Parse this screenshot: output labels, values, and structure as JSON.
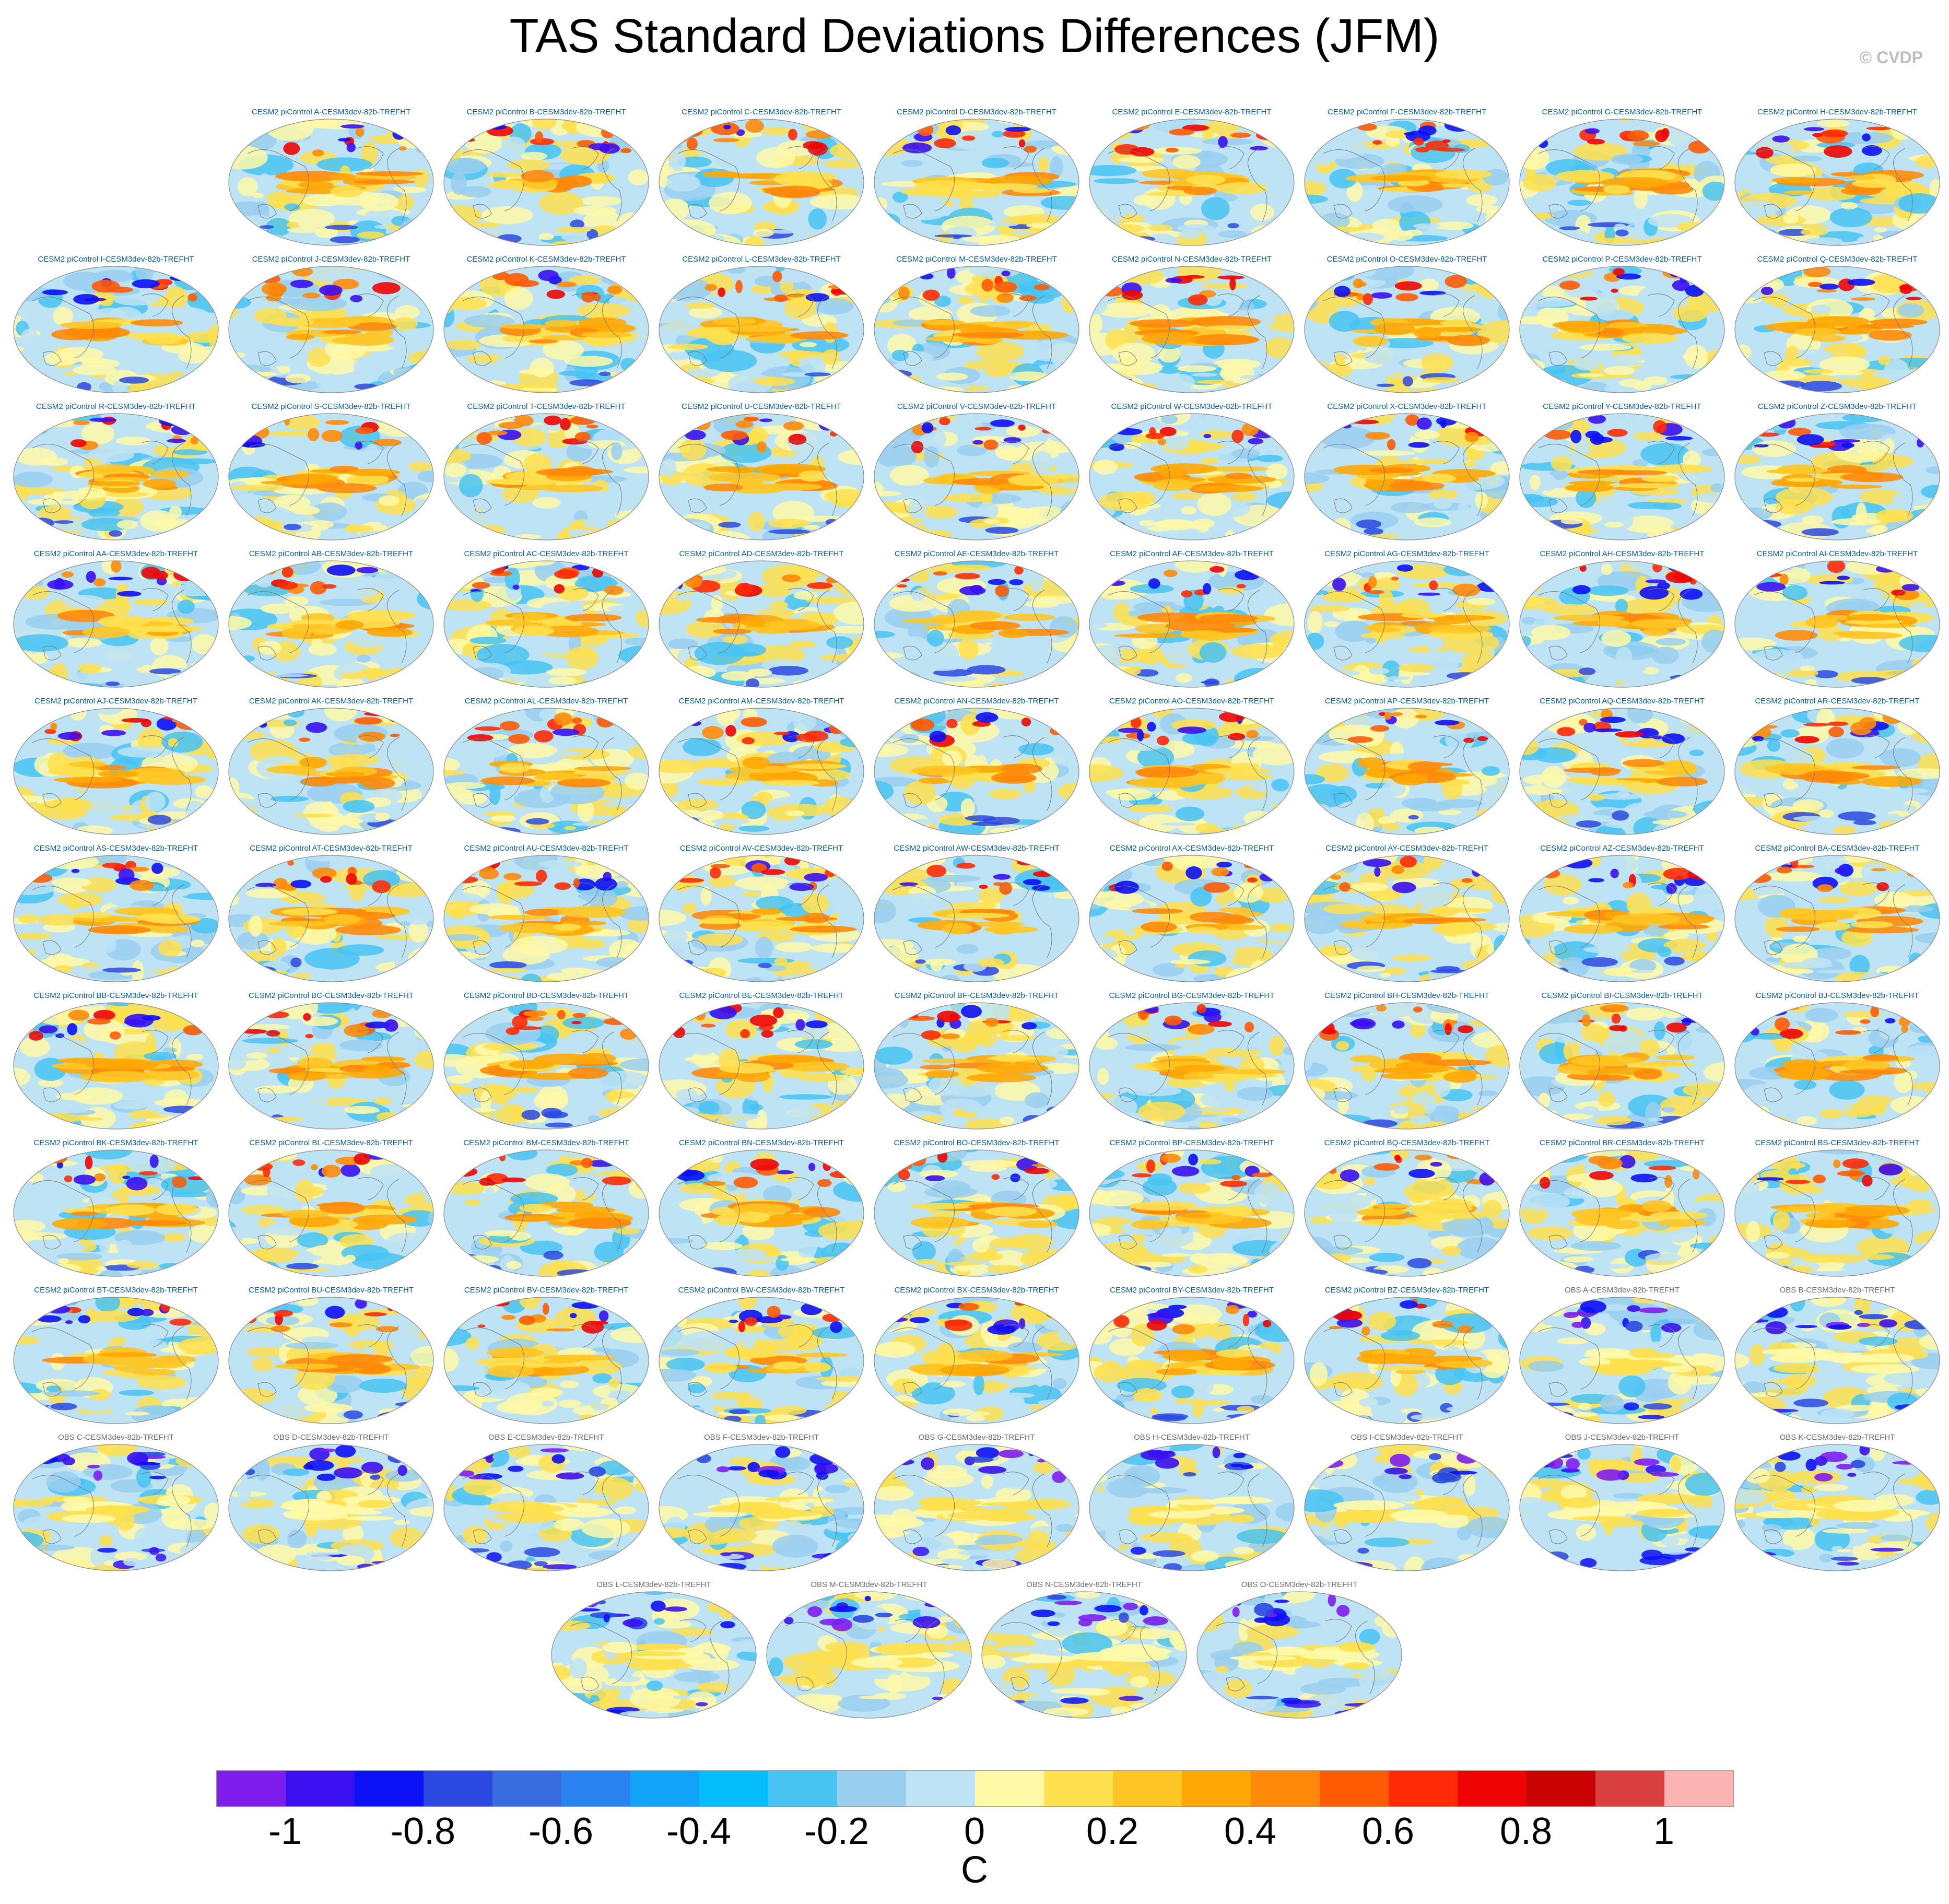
{
  "title": "TAS Standard Deviations Differences (JFM)",
  "copyright": "© CVDP",
  "panels": [
    "CESM2 piControl A-CESM3dev-82b-TREFHT",
    "CESM2 piControl B-CESM3dev-82b-TREFHT",
    "CESM2 piControl C-CESM3dev-82b-TREFHT",
    "CESM2 piControl D-CESM3dev-82b-TREFHT",
    "CESM2 piControl E-CESM3dev-82b-TREFHT",
    "CESM2 piControl F-CESM3dev-82b-TREFHT",
    "CESM2 piControl G-CESM3dev-82b-TREFHT",
    "CESM2 piControl H-CESM3dev-82b-TREFHT",
    "CESM2 piControl I-CESM3dev-82b-TREFHT",
    "CESM2 piControl J-CESM3dev-82b-TREFHT",
    "CESM2 piControl K-CESM3dev-82b-TREFHT",
    "CESM2 piControl L-CESM3dev-82b-TREFHT",
    "CESM2 piControl M-CESM3dev-82b-TREFHT",
    "CESM2 piControl N-CESM3dev-82b-TREFHT",
    "CESM2 piControl O-CESM3dev-82b-TREFHT",
    "CESM2 piControl P-CESM3dev-82b-TREFHT",
    "CESM2 piControl Q-CESM3dev-82b-TREFHT",
    "CESM2 piControl R-CESM3dev-82b-TREFHT",
    "CESM2 piControl S-CESM3dev-82b-TREFHT",
    "CESM2 piControl T-CESM3dev-82b-TREFHT",
    "CESM2 piControl U-CESM3dev-82b-TREFHT",
    "CESM2 piControl V-CESM3dev-82b-TREFHT",
    "CESM2 piControl W-CESM3dev-82b-TREFHT",
    "CESM2 piControl X-CESM3dev-82b-TREFHT",
    "CESM2 piControl Y-CESM3dev-82b-TREFHT",
    "CESM2 piControl Z-CESM3dev-82b-TREFHT",
    "CESM2 piControl AA-CESM3dev-82b-TREFHT",
    "CESM2 piControl AB-CESM3dev-82b-TREFHT",
    "CESM2 piControl AC-CESM3dev-82b-TREFHT",
    "CESM2 piControl AD-CESM3dev-82b-TREFHT",
    "CESM2 piControl AE-CESM3dev-82b-TREFHT",
    "CESM2 piControl AF-CESM3dev-82b-TREFHT",
    "CESM2 piControl AG-CESM3dev-82b-TREFHT",
    "CESM2 piControl AH-CESM3dev-82b-TREFHT",
    "CESM2 piControl AI-CESM3dev-82b-TREFHT",
    "CESM2 piControl AJ-CESM3dev-82b-TREFHT",
    "CESM2 piControl AK-CESM3dev-82b-TREFHT",
    "CESM2 piControl AL-CESM3dev-82b-TREFHT",
    "CESM2 piControl AM-CESM3dev-82b-TREFHT",
    "CESM2 piControl AN-CESM3dev-82b-TREFHT",
    "CESM2 piControl AO-CESM3dev-82b-TREFHT",
    "CESM2 piControl AP-CESM3dev-82b-TREFHT",
    "CESM2 piControl AQ-CESM3dev-82b-TREFHT",
    "CESM2 piControl AR-CESM3dev-82b-TREFHT",
    "CESM2 piControl AS-CESM3dev-82b-TREFHT",
    "CESM2 piControl AT-CESM3dev-82b-TREFHT",
    "CESM2 piControl AU-CESM3dev-82b-TREFHT",
    "CESM2 piControl AV-CESM3dev-82b-TREFHT",
    "CESM2 piControl AW-CESM3dev-82b-TREFHT",
    "CESM2 piControl AX-CESM3dev-82b-TREFHT",
    "CESM2 piControl AY-CESM3dev-82b-TREFHT",
    "CESM2 piControl AZ-CESM3dev-82b-TREFHT",
    "CESM2 piControl BA-CESM3dev-82b-TREFHT",
    "CESM2 piControl BB-CESM3dev-82b-TREFHT",
    "CESM2 piControl BC-CESM3dev-82b-TREFHT",
    "CESM2 piControl BD-CESM3dev-82b-TREFHT",
    "CESM2 piControl BE-CESM3dev-82b-TREFHT",
    "CESM2 piControl BF-CESM3dev-82b-TREFHT",
    "CESM2 piControl BG-CESM3dev-82b-TREFHT",
    "CESM2 piControl BH-CESM3dev-82b-TREFHT",
    "CESM2 piControl BI-CESM3dev-82b-TREFHT",
    "CESM2 piControl BJ-CESM3dev-82b-TREFHT",
    "CESM2 piControl BK-CESM3dev-82b-TREFHT",
    "CESM2 piControl BL-CESM3dev-82b-TREFHT",
    "CESM2 piControl BM-CESM3dev-82b-TREFHT",
    "CESM2 piControl BN-CESM3dev-82b-TREFHT",
    "CESM2 piControl BO-CESM3dev-82b-TREFHT",
    "CESM2 piControl BP-CESM3dev-82b-TREFHT",
    "CESM2 piControl BQ-CESM3dev-82b-TREFHT",
    "CESM2 piControl BR-CESM3dev-82b-TREFHT",
    "CESM2 piControl BS-CESM3dev-82b-TREFHT",
    "CESM2 piControl BT-CESM3dev-82b-TREFHT",
    "CESM2 piControl BU-CESM3dev-82b-TREFHT",
    "CESM2 piControl BV-CESM3dev-82b-TREFHT",
    "CESM2 piControl BW-CESM3dev-82b-TREFHT",
    "CESM2 piControl BX-CESM3dev-82b-TREFHT",
    "CESM2 piControl BY-CESM3dev-82b-TREFHT",
    "CESM2 piControl BZ-CESM3dev-82b-TREFHT",
    "OBS A-CESM3dev-82b-TREFHT",
    "OBS B-CESM3dev-82b-TREFHT",
    "OBS C-CESM3dev-82b-TREFHT",
    "OBS D-CESM3dev-82b-TREFHT",
    "OBS E-CESM3dev-82b-TREFHT",
    "OBS F-CESM3dev-82b-TREFHT",
    "OBS G-CESM3dev-82b-TREFHT",
    "OBS H-CESM3dev-82b-TREFHT",
    "OBS I-CESM3dev-82b-TREFHT",
    "OBS J-CESM3dev-82b-TREFHT",
    "OBS K-CESM3dev-82b-TREFHT",
    "OBS L-CESM3dev-82b-TREFHT",
    "OBS M-CESM3dev-82b-TREFHT",
    "OBS N-CESM3dev-82b-TREFHT",
    "OBS O-CESM3dev-82b-TREFHT"
  ],
  "colorbar": {
    "colors": [
      "#7f1ded",
      "#3a10f0",
      "#0c10f5",
      "#2b49e0",
      "#386ddf",
      "#2a82ef",
      "#12a2f7",
      "#06bdfb",
      "#48c3f2",
      "#99cfee",
      "#bde3f5",
      "#fff9a8",
      "#ffe04e",
      "#ffc524",
      "#ffa705",
      "#ff8a0a",
      "#ff5b05",
      "#ff2a08",
      "#ee0405",
      "#cb0203",
      "#db4041",
      "#fbb3b3"
    ],
    "ticks": [
      "-1",
      "-0.8",
      "-0.6",
      "-0.4",
      "-0.2",
      "0",
      "0.2",
      "0.4",
      "0.6",
      "0.8",
      "1"
    ],
    "label": "C"
  }
}
